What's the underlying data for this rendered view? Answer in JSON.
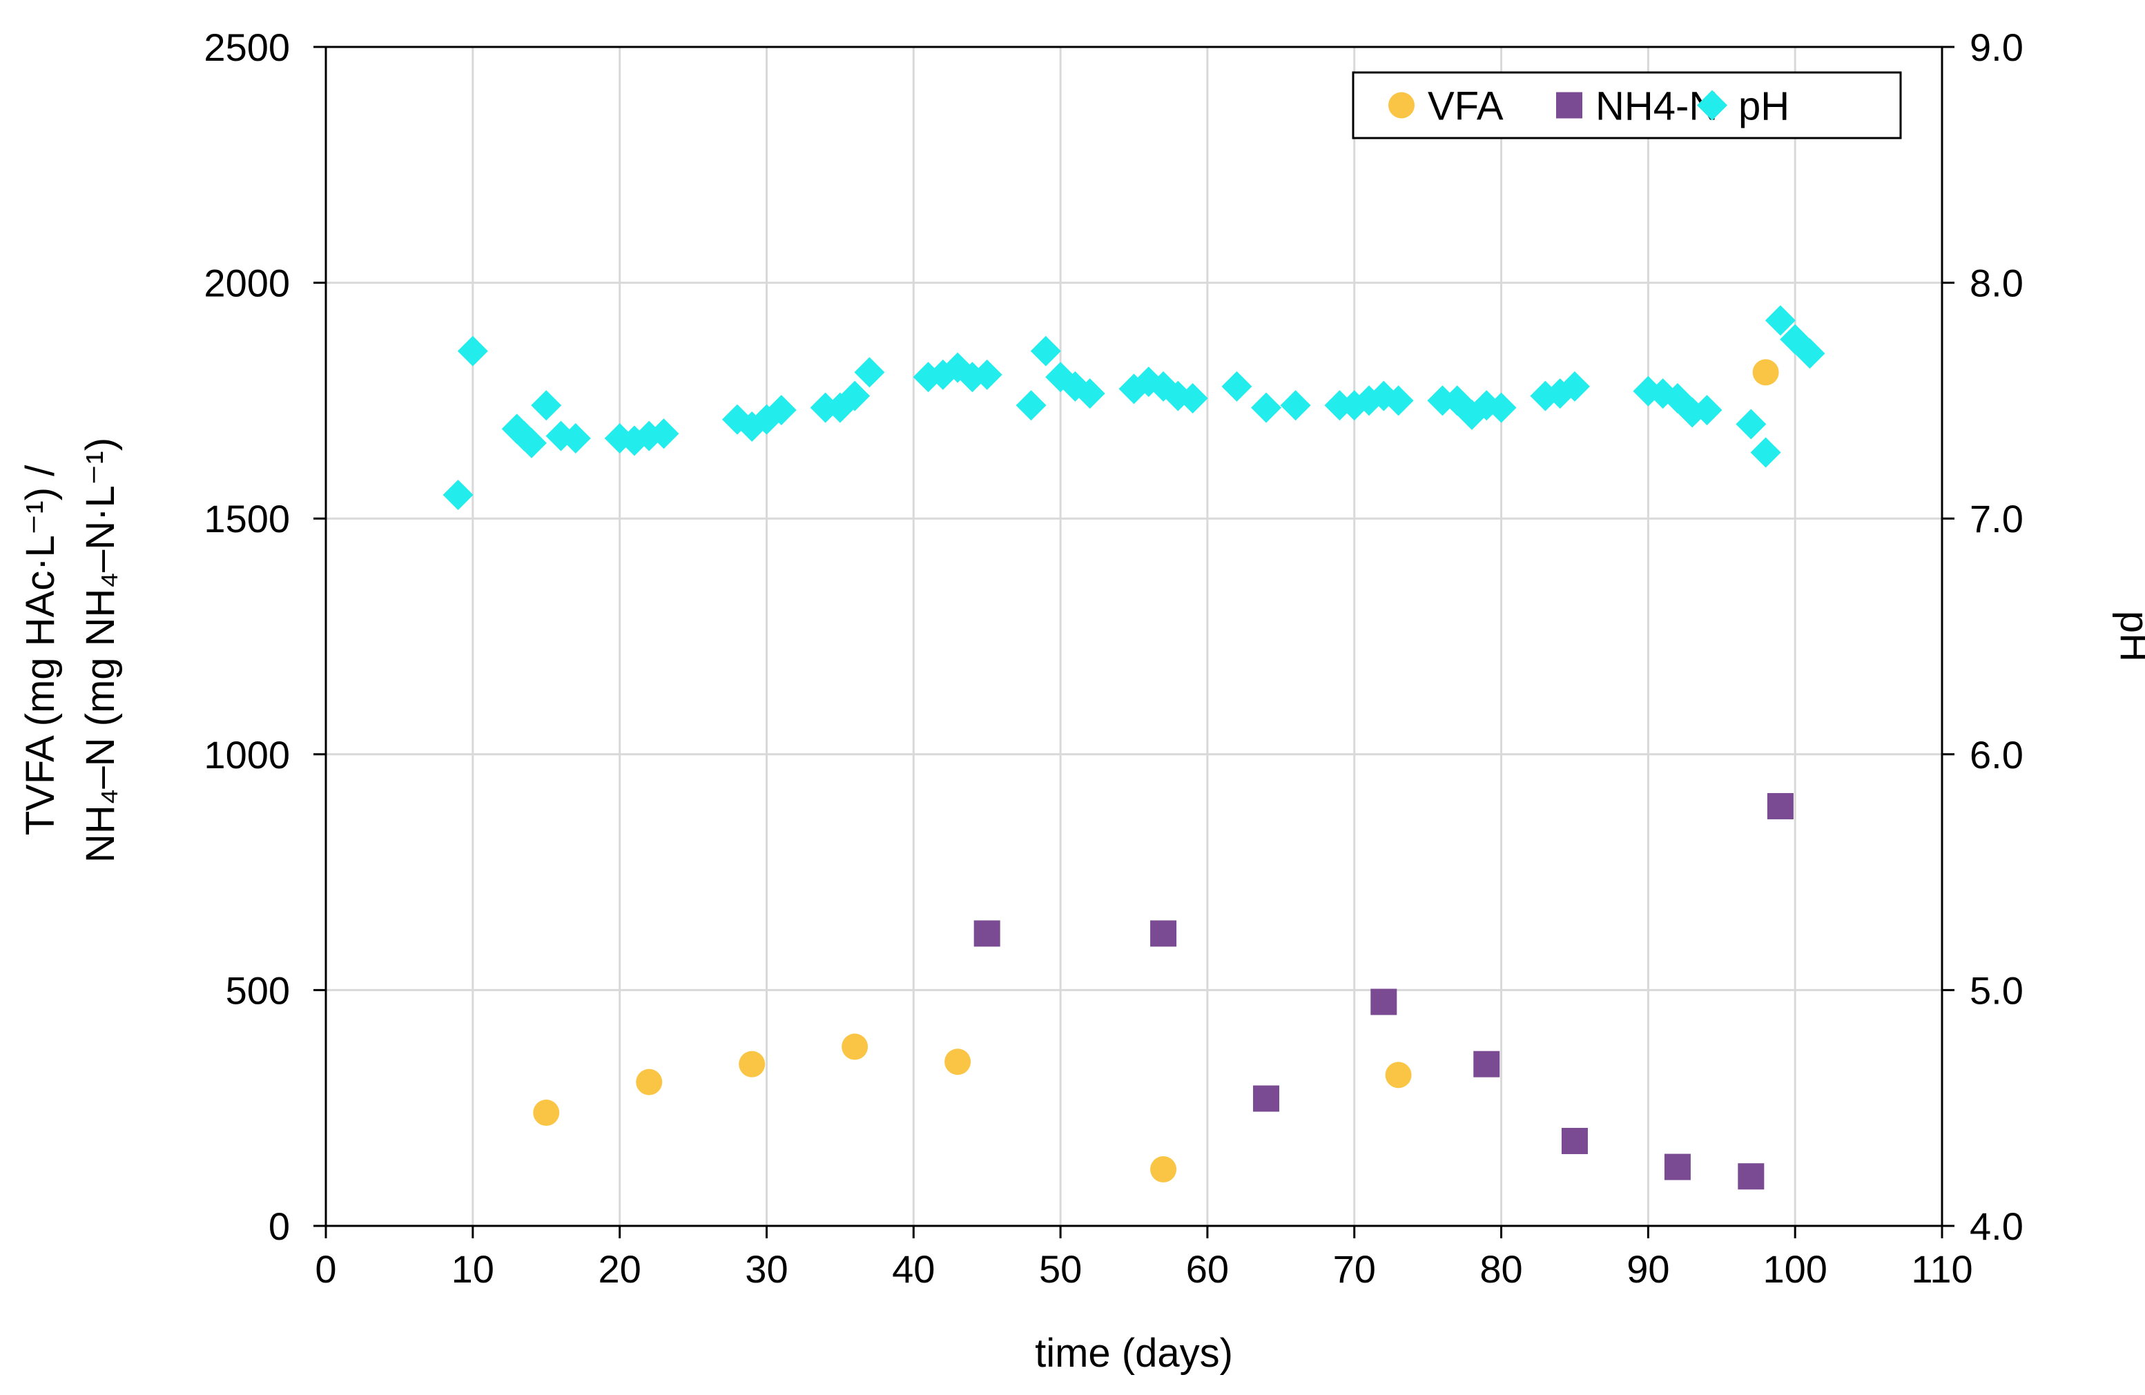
{
  "chart_data": {
    "type": "scatter",
    "title": "",
    "xlabel": "time (days)",
    "ylabel_left_line1": "TVFA (mg HAc·L⁻¹) /",
    "ylabel_left_line2": "NH₄–N (mg NH₄–N·L⁻¹)",
    "ylabel_right": "pH",
    "xlim": [
      0,
      110
    ],
    "ylim_left": [
      0,
      2500
    ],
    "ylim_right": [
      4.0,
      9.0
    ],
    "x_ticks": [
      "0",
      "10",
      "20",
      "30",
      "40",
      "50",
      "60",
      "70",
      "80",
      "90",
      "100",
      "110"
    ],
    "y_left_ticks": [
      "0",
      "500",
      "1000",
      "1500",
      "2000",
      "2500"
    ],
    "y_right_ticks": [
      "4.0",
      "5.0",
      "6.0",
      "7.0",
      "8.0",
      "9.0"
    ],
    "grid": true,
    "legend_position": "top-right",
    "series": [
      {
        "name": "VFA",
        "axis": "left",
        "marker": "circle",
        "color": "#fac545",
        "x": [
          15,
          22,
          29,
          36,
          43,
          57,
          73,
          98
        ],
        "y": [
          240,
          305,
          343,
          380,
          348,
          120,
          320,
          1810
        ]
      },
      {
        "name": "NH4-N",
        "axis": "left",
        "marker": "square",
        "color": "#7a4b92",
        "x": [
          45,
          57,
          64,
          72,
          79,
          85,
          92,
          97,
          99
        ],
        "y": [
          620,
          620,
          270,
          475,
          343,
          180,
          125,
          105,
          890
        ]
      },
      {
        "name": "pH",
        "axis": "right",
        "marker": "diamond",
        "color": "#22ecec",
        "x": [
          9,
          10,
          13,
          13.5,
          14,
          15,
          16,
          17,
          20,
          21,
          22,
          23,
          28,
          29,
          30,
          31,
          34,
          35,
          36,
          37,
          41,
          42,
          43,
          44,
          45,
          48,
          49,
          50,
          51,
          52,
          55,
          56,
          57,
          58,
          59,
          62,
          64,
          66,
          69,
          70,
          71,
          72,
          73,
          76,
          77,
          78,
          79,
          80,
          83,
          84,
          85,
          90,
          91,
          92,
          93,
          94,
          97,
          98,
          99,
          100,
          101
        ],
        "y": [
          7.1,
          7.71,
          7.38,
          7.35,
          7.32,
          7.48,
          7.35,
          7.34,
          7.34,
          7.33,
          7.35,
          7.36,
          7.42,
          7.39,
          7.42,
          7.46,
          7.47,
          7.47,
          7.52,
          7.62,
          7.6,
          7.61,
          7.64,
          7.6,
          7.61,
          7.48,
          7.71,
          7.6,
          7.56,
          7.53,
          7.55,
          7.58,
          7.56,
          7.52,
          7.51,
          7.56,
          7.47,
          7.48,
          7.48,
          7.48,
          7.5,
          7.52,
          7.5,
          7.5,
          7.5,
          7.44,
          7.48,
          7.47,
          7.52,
          7.53,
          7.56,
          7.54,
          7.53,
          7.51,
          7.45,
          7.46,
          7.4,
          7.28,
          7.84,
          7.76,
          7.7
        ]
      }
    ]
  }
}
